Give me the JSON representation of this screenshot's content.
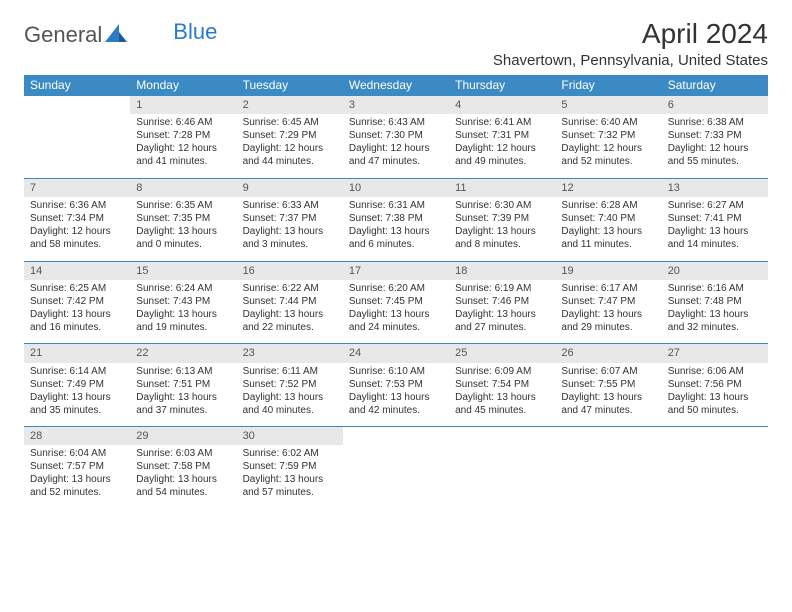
{
  "brand": {
    "part1": "General",
    "part2": "Blue"
  },
  "title": "April 2024",
  "location": "Shavertown, Pennsylvania, United States",
  "colors": {
    "header_bg": "#3b8ac4",
    "header_text": "#ffffff",
    "daynum_bg": "#e8e8e8",
    "row_border": "#3b8ac4",
    "text": "#333333",
    "brand_gray": "#555555",
    "brand_blue": "#2b7cc7"
  },
  "weekdays": [
    "Sunday",
    "Monday",
    "Tuesday",
    "Wednesday",
    "Thursday",
    "Friday",
    "Saturday"
  ],
  "weeks": [
    [
      null,
      {
        "n": "1",
        "sr": "6:46 AM",
        "ss": "7:28 PM",
        "dl": "12 hours and 41 minutes."
      },
      {
        "n": "2",
        "sr": "6:45 AM",
        "ss": "7:29 PM",
        "dl": "12 hours and 44 minutes."
      },
      {
        "n": "3",
        "sr": "6:43 AM",
        "ss": "7:30 PM",
        "dl": "12 hours and 47 minutes."
      },
      {
        "n": "4",
        "sr": "6:41 AM",
        "ss": "7:31 PM",
        "dl": "12 hours and 49 minutes."
      },
      {
        "n": "5",
        "sr": "6:40 AM",
        "ss": "7:32 PM",
        "dl": "12 hours and 52 minutes."
      },
      {
        "n": "6",
        "sr": "6:38 AM",
        "ss": "7:33 PM",
        "dl": "12 hours and 55 minutes."
      }
    ],
    [
      {
        "n": "7",
        "sr": "6:36 AM",
        "ss": "7:34 PM",
        "dl": "12 hours and 58 minutes."
      },
      {
        "n": "8",
        "sr": "6:35 AM",
        "ss": "7:35 PM",
        "dl": "13 hours and 0 minutes."
      },
      {
        "n": "9",
        "sr": "6:33 AM",
        "ss": "7:37 PM",
        "dl": "13 hours and 3 minutes."
      },
      {
        "n": "10",
        "sr": "6:31 AM",
        "ss": "7:38 PM",
        "dl": "13 hours and 6 minutes."
      },
      {
        "n": "11",
        "sr": "6:30 AM",
        "ss": "7:39 PM",
        "dl": "13 hours and 8 minutes."
      },
      {
        "n": "12",
        "sr": "6:28 AM",
        "ss": "7:40 PM",
        "dl": "13 hours and 11 minutes."
      },
      {
        "n": "13",
        "sr": "6:27 AM",
        "ss": "7:41 PM",
        "dl": "13 hours and 14 minutes."
      }
    ],
    [
      {
        "n": "14",
        "sr": "6:25 AM",
        "ss": "7:42 PM",
        "dl": "13 hours and 16 minutes."
      },
      {
        "n": "15",
        "sr": "6:24 AM",
        "ss": "7:43 PM",
        "dl": "13 hours and 19 minutes."
      },
      {
        "n": "16",
        "sr": "6:22 AM",
        "ss": "7:44 PM",
        "dl": "13 hours and 22 minutes."
      },
      {
        "n": "17",
        "sr": "6:20 AM",
        "ss": "7:45 PM",
        "dl": "13 hours and 24 minutes."
      },
      {
        "n": "18",
        "sr": "6:19 AM",
        "ss": "7:46 PM",
        "dl": "13 hours and 27 minutes."
      },
      {
        "n": "19",
        "sr": "6:17 AM",
        "ss": "7:47 PM",
        "dl": "13 hours and 29 minutes."
      },
      {
        "n": "20",
        "sr": "6:16 AM",
        "ss": "7:48 PM",
        "dl": "13 hours and 32 minutes."
      }
    ],
    [
      {
        "n": "21",
        "sr": "6:14 AM",
        "ss": "7:49 PM",
        "dl": "13 hours and 35 minutes."
      },
      {
        "n": "22",
        "sr": "6:13 AM",
        "ss": "7:51 PM",
        "dl": "13 hours and 37 minutes."
      },
      {
        "n": "23",
        "sr": "6:11 AM",
        "ss": "7:52 PM",
        "dl": "13 hours and 40 minutes."
      },
      {
        "n": "24",
        "sr": "6:10 AM",
        "ss": "7:53 PM",
        "dl": "13 hours and 42 minutes."
      },
      {
        "n": "25",
        "sr": "6:09 AM",
        "ss": "7:54 PM",
        "dl": "13 hours and 45 minutes."
      },
      {
        "n": "26",
        "sr": "6:07 AM",
        "ss": "7:55 PM",
        "dl": "13 hours and 47 minutes."
      },
      {
        "n": "27",
        "sr": "6:06 AM",
        "ss": "7:56 PM",
        "dl": "13 hours and 50 minutes."
      }
    ],
    [
      {
        "n": "28",
        "sr": "6:04 AM",
        "ss": "7:57 PM",
        "dl": "13 hours and 52 minutes."
      },
      {
        "n": "29",
        "sr": "6:03 AM",
        "ss": "7:58 PM",
        "dl": "13 hours and 54 minutes."
      },
      {
        "n": "30",
        "sr": "6:02 AM",
        "ss": "7:59 PM",
        "dl": "13 hours and 57 minutes."
      },
      null,
      null,
      null,
      null
    ]
  ],
  "labels": {
    "sunrise": "Sunrise:",
    "sunset": "Sunset:",
    "daylight": "Daylight:"
  }
}
